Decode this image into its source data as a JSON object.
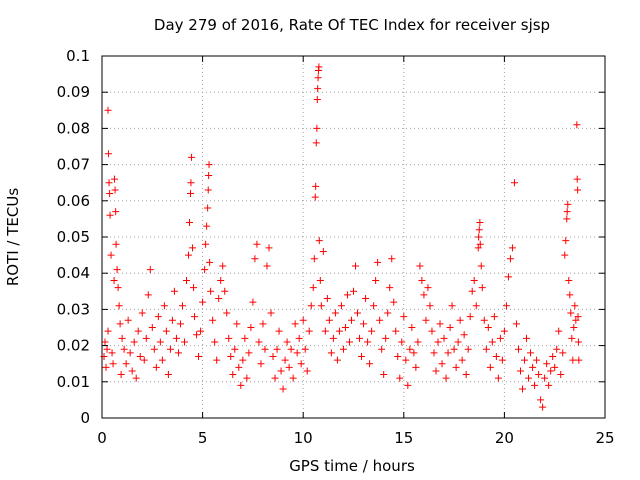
{
  "chart_data": {
    "type": "scatter",
    "title": "Day 279 of 2016, Rate Of TEC Index for receiver sjsp",
    "xlabel": "GPS time / hours",
    "ylabel": "ROTI / TECUs",
    "xlim": [
      0,
      25
    ],
    "ylim": [
      0,
      0.1
    ],
    "xticks": [
      0,
      5,
      10,
      15,
      20,
      25
    ],
    "yticks": [
      0,
      0.01,
      0.02,
      0.03,
      0.04,
      0.05,
      0.06,
      0.07,
      0.08,
      0.09,
      0.1
    ],
    "xtick_labels": [
      "0",
      "5",
      "10",
      "15",
      "20",
      "25"
    ],
    "ytick_labels": [
      "0",
      "0.01",
      "0.02",
      "0.03",
      "0.04",
      "0.05",
      "0.06",
      "0.07",
      "0.08",
      "0.09",
      "0.1"
    ],
    "grid": true,
    "marker": "+",
    "series": [
      {
        "name": "ROTI",
        "color": "#ff0000",
        "points": [
          [
            0.1,
            0.017
          ],
          [
            0.15,
            0.021
          ],
          [
            0.2,
            0.014
          ],
          [
            0.25,
            0.019
          ],
          [
            0.3,
            0.024
          ],
          [
            0.3,
            0.085
          ],
          [
            0.32,
            0.073
          ],
          [
            0.35,
            0.065
          ],
          [
            0.38,
            0.062
          ],
          [
            0.4,
            0.056
          ],
          [
            0.45,
            0.045
          ],
          [
            0.5,
            0.018
          ],
          [
            0.55,
            0.015
          ],
          [
            0.6,
            0.038
          ],
          [
            0.62,
            0.066
          ],
          [
            0.65,
            0.063
          ],
          [
            0.68,
            0.057
          ],
          [
            0.7,
            0.048
          ],
          [
            0.75,
            0.041
          ],
          [
            0.8,
            0.036
          ],
          [
            0.85,
            0.031
          ],
          [
            0.9,
            0.026
          ],
          [
            0.95,
            0.012
          ],
          [
            1.0,
            0.022
          ],
          [
            1.1,
            0.019
          ],
          [
            1.2,
            0.015
          ],
          [
            1.3,
            0.027
          ],
          [
            1.4,
            0.018
          ],
          [
            1.5,
            0.013
          ],
          [
            1.6,
            0.021
          ],
          [
            1.7,
            0.011
          ],
          [
            1.8,
            0.024
          ],
          [
            1.9,
            0.017
          ],
          [
            2.0,
            0.029
          ],
          [
            2.1,
            0.016
          ],
          [
            2.2,
            0.022
          ],
          [
            2.3,
            0.034
          ],
          [
            2.4,
            0.041
          ],
          [
            2.5,
            0.025
          ],
          [
            2.6,
            0.019
          ],
          [
            2.7,
            0.014
          ],
          [
            2.8,
            0.028
          ],
          [
            2.9,
            0.021
          ],
          [
            3.0,
            0.016
          ],
          [
            3.1,
            0.031
          ],
          [
            3.2,
            0.024
          ],
          [
            3.3,
            0.012
          ],
          [
            3.4,
            0.019
          ],
          [
            3.5,
            0.027
          ],
          [
            3.6,
            0.035
          ],
          [
            3.7,
            0.022
          ],
          [
            3.8,
            0.018
          ],
          [
            3.9,
            0.026
          ],
          [
            4.0,
            0.031
          ],
          [
            4.1,
            0.021
          ],
          [
            4.2,
            0.038
          ],
          [
            4.3,
            0.045
          ],
          [
            4.35,
            0.054
          ],
          [
            4.4,
            0.062
          ],
          [
            4.42,
            0.065
          ],
          [
            4.45,
            0.072
          ],
          [
            4.5,
            0.047
          ],
          [
            4.55,
            0.036
          ],
          [
            4.6,
            0.028
          ],
          [
            4.7,
            0.023
          ],
          [
            4.8,
            0.017
          ],
          [
            4.9,
            0.024
          ],
          [
            5.0,
            0.032
          ],
          [
            5.1,
            0.041
          ],
          [
            5.15,
            0.048
          ],
          [
            5.2,
            0.053
          ],
          [
            5.25,
            0.058
          ],
          [
            5.28,
            0.063
          ],
          [
            5.3,
            0.067
          ],
          [
            5.32,
            0.07
          ],
          [
            5.35,
            0.043
          ],
          [
            5.4,
            0.035
          ],
          [
            5.5,
            0.027
          ],
          [
            5.6,
            0.021
          ],
          [
            5.7,
            0.016
          ],
          [
            5.8,
            0.033
          ],
          [
            5.9,
            0.038
          ],
          [
            6.0,
            0.042
          ],
          [
            6.1,
            0.035
          ],
          [
            6.2,
            0.029
          ],
          [
            6.3,
            0.022
          ],
          [
            6.4,
            0.017
          ],
          [
            6.5,
            0.012
          ],
          [
            6.6,
            0.019
          ],
          [
            6.7,
            0.026
          ],
          [
            6.8,
            0.014
          ],
          [
            6.9,
            0.009
          ],
          [
            7.0,
            0.016
          ],
          [
            7.1,
            0.022
          ],
          [
            7.2,
            0.011
          ],
          [
            7.3,
            0.018
          ],
          [
            7.4,
            0.025
          ],
          [
            7.5,
            0.032
          ],
          [
            7.6,
            0.044
          ],
          [
            7.7,
            0.048
          ],
          [
            7.8,
            0.021
          ],
          [
            7.9,
            0.015
          ],
          [
            8.0,
            0.026
          ],
          [
            8.1,
            0.019
          ],
          [
            8.2,
            0.042
          ],
          [
            8.3,
            0.047
          ],
          [
            8.4,
            0.029
          ],
          [
            8.5,
            0.017
          ],
          [
            8.6,
            0.011
          ],
          [
            8.7,
            0.019
          ],
          [
            8.8,
            0.024
          ],
          [
            8.9,
            0.013
          ],
          [
            9.0,
            0.008
          ],
          [
            9.1,
            0.016
          ],
          [
            9.2,
            0.021
          ],
          [
            9.3,
            0.014
          ],
          [
            9.4,
            0.019
          ],
          [
            9.5,
            0.011
          ],
          [
            9.6,
            0.026
          ],
          [
            9.7,
            0.018
          ],
          [
            9.8,
            0.022
          ],
          [
            9.9,
            0.015
          ],
          [
            10.0,
            0.027
          ],
          [
            10.1,
            0.019
          ],
          [
            10.2,
            0.013
          ],
          [
            10.3,
            0.024
          ],
          [
            10.4,
            0.031
          ],
          [
            10.5,
            0.036
          ],
          [
            10.55,
            0.044
          ],
          [
            10.6,
            0.061
          ],
          [
            10.62,
            0.064
          ],
          [
            10.65,
            0.076
          ],
          [
            10.68,
            0.08
          ],
          [
            10.7,
            0.088
          ],
          [
            10.72,
            0.091
          ],
          [
            10.74,
            0.094
          ],
          [
            10.76,
            0.096
          ],
          [
            10.78,
            0.097
          ],
          [
            10.8,
            0.049
          ],
          [
            10.85,
            0.038
          ],
          [
            10.9,
            0.031
          ],
          [
            11.0,
            0.046
          ],
          [
            11.1,
            0.024
          ],
          [
            11.2,
            0.033
          ],
          [
            11.3,
            0.027
          ],
          [
            11.4,
            0.018
          ],
          [
            11.5,
            0.022
          ],
          [
            11.6,
            0.029
          ],
          [
            11.7,
            0.016
          ],
          [
            11.8,
            0.024
          ],
          [
            11.9,
            0.031
          ],
          [
            12.0,
            0.019
          ],
          [
            12.1,
            0.025
          ],
          [
            12.2,
            0.034
          ],
          [
            12.3,
            0.021
          ],
          [
            12.4,
            0.027
          ],
          [
            12.5,
            0.035
          ],
          [
            12.6,
            0.042
          ],
          [
            12.7,
            0.029
          ],
          [
            12.8,
            0.022
          ],
          [
            12.9,
            0.017
          ],
          [
            13.0,
            0.026
          ],
          [
            13.1,
            0.033
          ],
          [
            13.2,
            0.021
          ],
          [
            13.3,
            0.015
          ],
          [
            13.4,
            0.024
          ],
          [
            13.5,
            0.031
          ],
          [
            13.6,
            0.038
          ],
          [
            13.7,
            0.043
          ],
          [
            13.8,
            0.027
          ],
          [
            13.9,
            0.019
          ],
          [
            14.0,
            0.012
          ],
          [
            14.1,
            0.022
          ],
          [
            14.2,
            0.029
          ],
          [
            14.3,
            0.036
          ],
          [
            14.4,
            0.044
          ],
          [
            14.5,
            0.032
          ],
          [
            14.6,
            0.024
          ],
          [
            14.7,
            0.017
          ],
          [
            14.8,
            0.011
          ],
          [
            14.9,
            0.021
          ],
          [
            15.0,
            0.028
          ],
          [
            15.1,
            0.016
          ],
          [
            15.2,
            0.009
          ],
          [
            15.3,
            0.019
          ],
          [
            15.4,
            0.025
          ],
          [
            15.5,
            0.018
          ],
          [
            15.6,
            0.014
          ],
          [
            15.7,
            0.021
          ],
          [
            15.8,
            0.042
          ],
          [
            15.9,
            0.038
          ],
          [
            16.0,
            0.034
          ],
          [
            16.1,
            0.027
          ],
          [
            16.2,
            0.036
          ],
          [
            16.3,
            0.031
          ],
          [
            16.4,
            0.024
          ],
          [
            16.5,
            0.018
          ],
          [
            16.6,
            0.013
          ],
          [
            16.7,
            0.021
          ],
          [
            16.8,
            0.026
          ],
          [
            16.9,
            0.015
          ],
          [
            17.0,
            0.022
          ],
          [
            17.1,
            0.011
          ],
          [
            17.2,
            0.018
          ],
          [
            17.3,
            0.025
          ],
          [
            17.4,
            0.031
          ],
          [
            17.5,
            0.019
          ],
          [
            17.6,
            0.014
          ],
          [
            17.7,
            0.021
          ],
          [
            17.8,
            0.027
          ],
          [
            17.9,
            0.016
          ],
          [
            18.0,
            0.023
          ],
          [
            18.1,
            0.012
          ],
          [
            18.2,
            0.019
          ],
          [
            18.3,
            0.028
          ],
          [
            18.4,
            0.035
          ],
          [
            18.5,
            0.038
          ],
          [
            18.6,
            0.031
          ],
          [
            18.7,
            0.047
          ],
          [
            18.72,
            0.05
          ],
          [
            18.75,
            0.052
          ],
          [
            18.78,
            0.054
          ],
          [
            18.8,
            0.048
          ],
          [
            18.85,
            0.042
          ],
          [
            18.9,
            0.036
          ],
          [
            19.0,
            0.027
          ],
          [
            19.1,
            0.019
          ],
          [
            19.2,
            0.025
          ],
          [
            19.3,
            0.014
          ],
          [
            19.4,
            0.021
          ],
          [
            19.5,
            0.028
          ],
          [
            19.6,
            0.017
          ],
          [
            19.7,
            0.011
          ],
          [
            19.8,
            0.022
          ],
          [
            19.9,
            0.016
          ],
          [
            20.0,
            0.024
          ],
          [
            20.1,
            0.031
          ],
          [
            20.2,
            0.039
          ],
          [
            20.3,
            0.044
          ],
          [
            20.4,
            0.047
          ],
          [
            20.5,
            0.065
          ],
          [
            20.6,
            0.026
          ],
          [
            20.7,
            0.019
          ],
          [
            20.8,
            0.013
          ],
          [
            20.9,
            0.008
          ],
          [
            21.0,
            0.016
          ],
          [
            21.1,
            0.022
          ],
          [
            21.2,
            0.011
          ],
          [
            21.3,
            0.018
          ],
          [
            21.4,
            0.014
          ],
          [
            21.5,
            0.009
          ],
          [
            21.6,
            0.016
          ],
          [
            21.7,
            0.012
          ],
          [
            21.8,
            0.005
          ],
          [
            21.9,
            0.003
          ],
          [
            22.0,
            0.011
          ],
          [
            22.1,
            0.015
          ],
          [
            22.2,
            0.009
          ],
          [
            22.3,
            0.013
          ],
          [
            22.4,
            0.017
          ],
          [
            22.5,
            0.014
          ],
          [
            22.6,
            0.019
          ],
          [
            22.7,
            0.024
          ],
          [
            22.8,
            0.012
          ],
          [
            22.9,
            0.018
          ],
          [
            23.0,
            0.045
          ],
          [
            23.05,
            0.049
          ],
          [
            23.1,
            0.055
          ],
          [
            23.12,
            0.057
          ],
          [
            23.15,
            0.059
          ],
          [
            23.2,
            0.038
          ],
          [
            23.25,
            0.034
          ],
          [
            23.3,
            0.029
          ],
          [
            23.35,
            0.022
          ],
          [
            23.4,
            0.016
          ],
          [
            23.45,
            0.025
          ],
          [
            23.5,
            0.031
          ],
          [
            23.55,
            0.027
          ],
          [
            23.6,
            0.081
          ],
          [
            23.62,
            0.066
          ],
          [
            23.64,
            0.063
          ],
          [
            23.66,
            0.028
          ],
          [
            23.68,
            0.021
          ],
          [
            23.7,
            0.016
          ]
        ]
      }
    ]
  }
}
